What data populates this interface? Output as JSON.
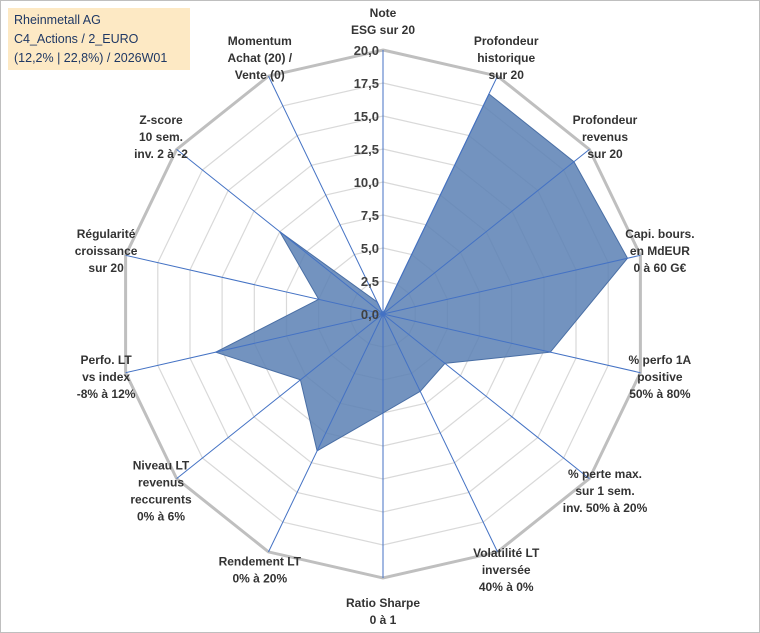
{
  "title_box": {
    "line1": "Rheinmetall AG",
    "line2": "C4_Actions / 2_EURO",
    "line3": "(12,2% | 22,8%) / 2026W01"
  },
  "chart_data": {
    "type": "radar",
    "rmax": 20,
    "tick_step": 2.5,
    "tick_labels": [
      "0,0",
      "2,5",
      "5,0",
      "7,5",
      "10,0",
      "12,5",
      "15,0",
      "17,5",
      "20,0"
    ],
    "axes": [
      {
        "label": [
          "Note",
          "ESG sur 20"
        ],
        "value": 0
      },
      {
        "label": [
          "Profondeur",
          "historique",
          "sur 20"
        ],
        "value": 18.5
      },
      {
        "label": [
          "Profondeur",
          "revenus",
          "sur 20"
        ],
        "value": 18.5
      },
      {
        "label": [
          "Capi. bours.",
          "en MdEUR",
          "0 à 60 G€"
        ],
        "value": 19
      },
      {
        "label": [
          "% perfo 1A",
          "positive",
          "50% à 80%"
        ],
        "value": 13
      },
      {
        "label": [
          "% perte max.",
          "sur 1 sem.",
          "inv. 50% à 20%"
        ],
        "value": 6
      },
      {
        "label": [
          "Volatilité LT",
          "inversée",
          "40% à 0%"
        ],
        "value": 6.5
      },
      {
        "label": [
          "Ratio Sharpe",
          "0 à 1"
        ],
        "value": 7.5
      },
      {
        "label": [
          "Rendement LT",
          "0% à 20%"
        ],
        "value": 11.5
      },
      {
        "label": [
          "Niveau LT",
          "revenus",
          "reccurents",
          "0% à 6%"
        ],
        "value": 8
      },
      {
        "label": [
          "Perfo. LT",
          "vs index",
          "-8% à 12%"
        ],
        "value": 13
      },
      {
        "label": [
          "Régularité",
          "croissance",
          "sur 20"
        ],
        "value": 5
      },
      {
        "label": [
          "Z-score",
          "10 sem.",
          "inv. 2 à -2"
        ],
        "value": 10
      },
      {
        "label": [
          "Momentum",
          "Achat (20) /",
          "Vente (0)"
        ],
        "value": 1
      }
    ],
    "colors": {
      "fill": "#5b80b4",
      "fill_opacity": "0.85",
      "outline": "#4a6fa5",
      "spoke": "#4472c4",
      "ring": "#d9d9d9",
      "outer_ring": "#bfbfbf"
    }
  }
}
